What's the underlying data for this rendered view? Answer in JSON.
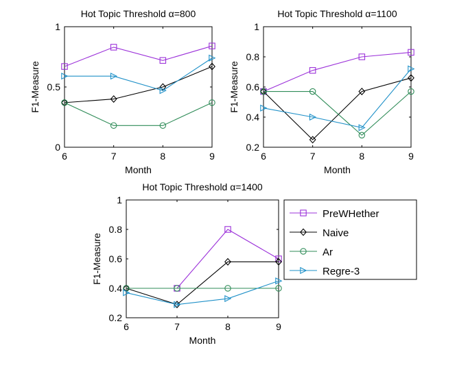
{
  "chart_data": [
    {
      "type": "line",
      "title": "Hot Topic Threshold α=800",
      "xlabel": "Month",
      "ylabel": "F1-Measure",
      "x": [
        6,
        7,
        8,
        9
      ],
      "xticks": [
        "6",
        "7",
        "8",
        "9"
      ],
      "xlim": [
        6,
        9
      ],
      "ylim": [
        0,
        1
      ],
      "yticks": [
        "0",
        "0.5",
        "1"
      ],
      "series": [
        {
          "name": "PreWHether",
          "values": [
            0.67,
            0.83,
            0.72,
            0.84
          ]
        },
        {
          "name": "Naive",
          "values": [
            0.37,
            0.4,
            0.5,
            0.67
          ]
        },
        {
          "name": "Ar",
          "values": [
            0.37,
            0.18,
            0.18,
            0.37
          ]
        },
        {
          "name": "Regre-3",
          "values": [
            0.59,
            0.59,
            0.47,
            0.74
          ]
        }
      ]
    },
    {
      "type": "line",
      "title": "Hot Topic Threshold α=1100",
      "xlabel": "Month",
      "ylabel": "F1-Measure",
      "x": [
        6,
        7,
        8,
        9
      ],
      "xticks": [
        "6",
        "7",
        "8",
        "9"
      ],
      "xlim": [
        6,
        9
      ],
      "ylim": [
        0.2,
        1
      ],
      "yticks": [
        "0.2",
        "0.4",
        "0.6",
        "0.8",
        "1"
      ],
      "series": [
        {
          "name": "PreWHether",
          "values": [
            0.57,
            0.71,
            0.8,
            0.83
          ]
        },
        {
          "name": "Naive",
          "values": [
            0.57,
            0.25,
            0.57,
            0.66
          ]
        },
        {
          "name": "Ar",
          "values": [
            0.57,
            0.57,
            0.28,
            0.57
          ]
        },
        {
          "name": "Regre-3",
          "values": [
            0.46,
            0.4,
            0.33,
            0.72
          ]
        }
      ]
    },
    {
      "type": "line",
      "title": "Hot Topic Threshold α=1400",
      "xlabel": "Month",
      "ylabel": "F1-Measure",
      "x": [
        6,
        7,
        8,
        9
      ],
      "xticks": [
        "6",
        "7",
        "8",
        "9"
      ],
      "xlim": [
        6,
        9
      ],
      "ylim": [
        0.2,
        1
      ],
      "yticks": [
        "0.2",
        "0.4",
        "0.6",
        "0.8",
        "1"
      ],
      "series": [
        {
          "name": "PreWHether",
          "values": [
            null,
            0.4,
            0.8,
            0.6
          ]
        },
        {
          "name": "Naive",
          "values": [
            0.4,
            0.29,
            0.58,
            0.58
          ]
        },
        {
          "name": "Ar",
          "values": [
            0.4,
            0.4,
            0.4,
            0.4
          ]
        },
        {
          "name": "Regre-3",
          "values": [
            0.37,
            0.29,
            0.33,
            0.45
          ]
        }
      ]
    }
  ],
  "legend": {
    "entries": [
      {
        "name": "PreWHether",
        "marker": "square",
        "color": "#9b30d9"
      },
      {
        "name": "Naive",
        "marker": "diamond",
        "color": "#000000"
      },
      {
        "name": "Ar",
        "marker": "circle",
        "color": "#2e8b57"
      },
      {
        "name": "Regre-3",
        "marker": "triangle-right",
        "color": "#1e90c8"
      }
    ]
  }
}
